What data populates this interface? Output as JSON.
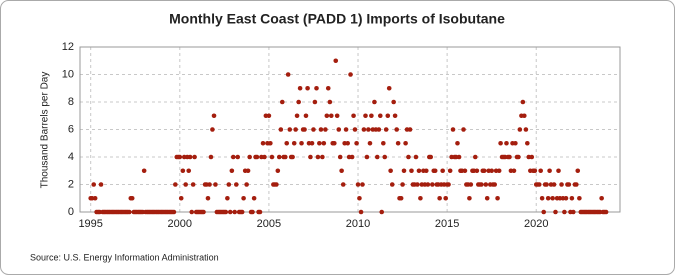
{
  "chart_data": {
    "type": "scatter",
    "title": "Monthly East Coast (PADD 1) Imports of Isobutane",
    "y_label": "Thousand Barrels per Day",
    "source": "Source: U.S. Energy Information Administration",
    "color": "#a41e0e",
    "grid": true,
    "xlim": [
      1994.4,
      2024.7
    ],
    "xticks": [
      1995,
      2000,
      2005,
      2010,
      2015,
      2020
    ],
    "ylim": [
      0,
      12
    ],
    "yticks": [
      0,
      2,
      4,
      6,
      8,
      10,
      12
    ],
    "x": [
      1995.0,
      1995.08,
      1995.17,
      1995.25,
      1995.33,
      1995.42,
      1995.5,
      1995.58,
      1995.67,
      1995.75,
      1995.83,
      1995.92,
      1996.0,
      1996.08,
      1996.17,
      1996.25,
      1996.33,
      1996.42,
      1996.5,
      1996.58,
      1996.67,
      1996.75,
      1996.83,
      1996.92,
      1997.0,
      1997.08,
      1997.17,
      1997.25,
      1997.33,
      1997.42,
      1997.5,
      1997.58,
      1997.67,
      1997.75,
      1997.83,
      1997.92,
      1998.0,
      1998.08,
      1998.17,
      1998.25,
      1998.33,
      1998.42,
      1998.5,
      1998.58,
      1998.67,
      1998.75,
      1998.83,
      1998.92,
      1999.0,
      1999.08,
      1999.17,
      1999.25,
      1999.33,
      1999.42,
      1999.5,
      1999.58,
      1999.67,
      1999.75,
      1999.83,
      1999.92,
      2000.0,
      2000.08,
      2000.17,
      2000.25,
      2000.33,
      2000.42,
      2000.5,
      2000.58,
      2000.67,
      2000.75,
      2000.83,
      2000.92,
      2001.0,
      2001.08,
      2001.17,
      2001.25,
      2001.33,
      2001.42,
      2001.5,
      2001.58,
      2001.67,
      2001.75,
      2001.83,
      2001.92,
      2002.0,
      2002.08,
      2002.17,
      2002.25,
      2002.33,
      2002.42,
      2002.5,
      2002.58,
      2002.67,
      2002.75,
      2002.83,
      2002.92,
      2003.0,
      2003.08,
      2003.17,
      2003.25,
      2003.33,
      2003.42,
      2003.5,
      2003.58,
      2003.67,
      2003.75,
      2003.83,
      2003.92,
      2004.0,
      2004.08,
      2004.17,
      2004.25,
      2004.33,
      2004.42,
      2004.5,
      2004.58,
      2004.67,
      2004.75,
      2004.83,
      2004.92,
      2005.0,
      2005.08,
      2005.17,
      2005.25,
      2005.33,
      2005.42,
      2005.5,
      2005.58,
      2005.67,
      2005.75,
      2005.83,
      2005.92,
      2006.0,
      2006.08,
      2006.17,
      2006.25,
      2006.33,
      2006.42,
      2006.5,
      2006.58,
      2006.67,
      2006.75,
      2006.83,
      2006.92,
      2007.0,
      2007.08,
      2007.17,
      2007.25,
      2007.33,
      2007.42,
      2007.5,
      2007.58,
      2007.67,
      2007.75,
      2007.83,
      2007.92,
      2008.0,
      2008.08,
      2008.17,
      2008.25,
      2008.33,
      2008.42,
      2008.5,
      2008.58,
      2008.67,
      2008.75,
      2008.83,
      2008.92,
      2009.0,
      2009.08,
      2009.17,
      2009.25,
      2009.33,
      2009.42,
      2009.5,
      2009.58,
      2009.67,
      2009.75,
      2009.83,
      2009.92,
      2010.0,
      2010.08,
      2010.17,
      2010.25,
      2010.33,
      2010.42,
      2010.5,
      2010.58,
      2010.67,
      2010.75,
      2010.83,
      2010.92,
      2011.0,
      2011.08,
      2011.17,
      2011.25,
      2011.33,
      2011.42,
      2011.5,
      2011.58,
      2011.67,
      2011.75,
      2011.83,
      2011.92,
      2012.0,
      2012.08,
      2012.17,
      2012.25,
      2012.33,
      2012.42,
      2012.5,
      2012.58,
      2012.67,
      2012.75,
      2012.83,
      2012.92,
      2013.0,
      2013.08,
      2013.17,
      2013.25,
      2013.33,
      2013.42,
      2013.5,
      2013.58,
      2013.67,
      2013.75,
      2013.83,
      2013.92,
      2014.0,
      2014.08,
      2014.17,
      2014.25,
      2014.33,
      2014.42,
      2014.5,
      2014.58,
      2014.67,
      2014.75,
      2014.83,
      2014.92,
      2015.0,
      2015.08,
      2015.17,
      2015.25,
      2015.33,
      2015.42,
      2015.5,
      2015.58,
      2015.67,
      2015.75,
      2015.83,
      2015.92,
      2016.0,
      2016.08,
      2016.17,
      2016.25,
      2016.33,
      2016.42,
      2016.5,
      2016.58,
      2016.67,
      2016.75,
      2016.83,
      2016.92,
      2017.0,
      2017.08,
      2017.17,
      2017.25,
      2017.33,
      2017.42,
      2017.5,
      2017.58,
      2017.67,
      2017.75,
      2017.83,
      2017.92,
      2018.0,
      2018.08,
      2018.17,
      2018.25,
      2018.33,
      2018.42,
      2018.5,
      2018.58,
      2018.67,
      2018.75,
      2018.83,
      2018.92,
      2019.0,
      2019.08,
      2019.17,
      2019.25,
      2019.33,
      2019.42,
      2019.5,
      2019.58,
      2019.67,
      2019.75,
      2019.83,
      2019.92,
      2020.0,
      2020.08,
      2020.17,
      2020.25,
      2020.33,
      2020.42,
      2020.5,
      2020.58,
      2020.67,
      2020.75,
      2020.83,
      2020.92,
      2021.0,
      2021.08,
      2021.17,
      2021.25,
      2021.33,
      2021.42,
      2021.5,
      2021.58,
      2021.67,
      2021.75,
      2021.83,
      2021.92,
      2022.0,
      2022.08,
      2022.17,
      2022.25,
      2022.33,
      2022.42,
      2022.5,
      2022.58,
      2022.67,
      2022.75,
      2022.83,
      2022.92,
      2023.0,
      2023.08,
      2023.17,
      2023.25,
      2023.33,
      2023.42,
      2023.5,
      2023.58,
      2023.67,
      2023.75,
      2023.83,
      2023.92
    ],
    "values": [
      1,
      1,
      2,
      1,
      0,
      0,
      0,
      2,
      0,
      0,
      0,
      0,
      0,
      0,
      0,
      0,
      0,
      0,
      0,
      0,
      0,
      0,
      0,
      0,
      0,
      0,
      0,
      1,
      1,
      0,
      0,
      0,
      0,
      0,
      0,
      0,
      3,
      0,
      0,
      0,
      0,
      0,
      0,
      0,
      0,
      0,
      0,
      0,
      0,
      0,
      0,
      0,
      0,
      0,
      0,
      0,
      0,
      2,
      4,
      4,
      4,
      1,
      3,
      4,
      2,
      4,
      3,
      4,
      0,
      2,
      4,
      0,
      0,
      0,
      0,
      0,
      0,
      2,
      2,
      1,
      2,
      4,
      6,
      7,
      2,
      0,
      0,
      0,
      0,
      0,
      0,
      0,
      1,
      2,
      0,
      3,
      4,
      0,
      2,
      4,
      0,
      0,
      0,
      1,
      3,
      2,
      3,
      4,
      0,
      0,
      1,
      4,
      4,
      0,
      0,
      4,
      5,
      4,
      7,
      5,
      7,
      5,
      4,
      2,
      2,
      2,
      3,
      4,
      6,
      8,
      4,
      4,
      5,
      10,
      6,
      4,
      4,
      5,
      6,
      7,
      8,
      9,
      5,
      6,
      6,
      7,
      9,
      5,
      4,
      5,
      6,
      8,
      9,
      4,
      5,
      6,
      4,
      5,
      6,
      7,
      9,
      8,
      7,
      5,
      5,
      11,
      7,
      6,
      4,
      3,
      2,
      5,
      6,
      5,
      4,
      10,
      4,
      7,
      6,
      5,
      2,
      1,
      0,
      2,
      6,
      7,
      4,
      6,
      5,
      7,
      6,
      8,
      6,
      4,
      6,
      7,
      0,
      5,
      4,
      6,
      7,
      9,
      3,
      2,
      8,
      7,
      6,
      5,
      1,
      1,
      2,
      3,
      5,
      6,
      4,
      6,
      3,
      2,
      2,
      4,
      2,
      3,
      1,
      2,
      3,
      2,
      3,
      2,
      4,
      4,
      2,
      3,
      3,
      2,
      2,
      1,
      2,
      3,
      2,
      1,
      2,
      2,
      3,
      4,
      6,
      4,
      4,
      5,
      4,
      3,
      3,
      6,
      3,
      2,
      2,
      1,
      2,
      3,
      3,
      4,
      3,
      2,
      2,
      2,
      3,
      3,
      2,
      1,
      3,
      2,
      3,
      2,
      2,
      3,
      1,
      3,
      5,
      4,
      4,
      4,
      5,
      4,
      4,
      3,
      5,
      3,
      5,
      4,
      4,
      6,
      7,
      8,
      7,
      6,
      5,
      4,
      3,
      4,
      3,
      3,
      2,
      2,
      2,
      3,
      1,
      0,
      2,
      2,
      1,
      3,
      2,
      1,
      2,
      0,
      1,
      3,
      1,
      2,
      1,
      0,
      1,
      2,
      2,
      0,
      1,
      0,
      2,
      2,
      3,
      1,
      0,
      0,
      0,
      0,
      0,
      0,
      0,
      0,
      0,
      0,
      0,
      0,
      0,
      0,
      1,
      0,
      0,
      0
    ]
  }
}
